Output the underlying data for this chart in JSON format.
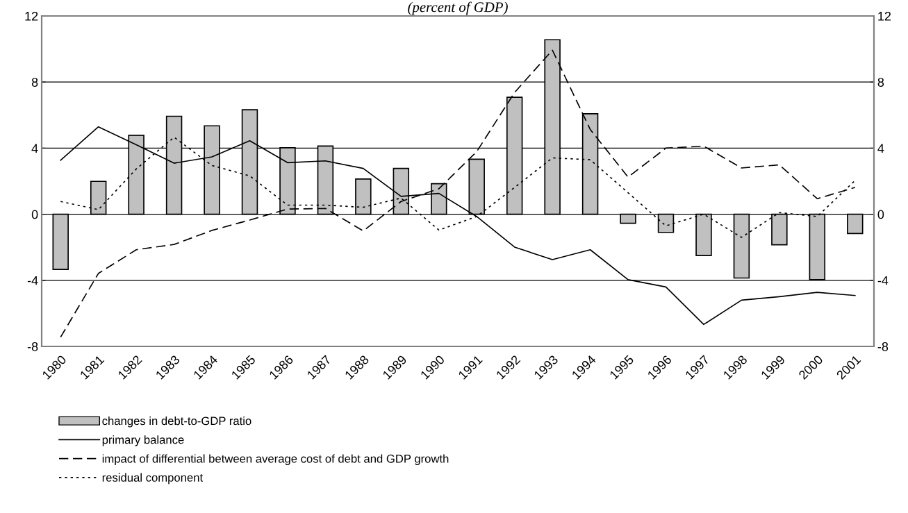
{
  "chart_data": {
    "type": "bar",
    "subtitle": "(percent of GDP)",
    "categories": [
      "1980",
      "1981",
      "1982",
      "1983",
      "1984",
      "1985",
      "1986",
      "1987",
      "1988",
      "1989",
      "1990",
      "1991",
      "1992",
      "1993",
      "1994",
      "1995",
      "1996",
      "1997",
      "1998",
      "1999",
      "2000",
      "2001"
    ],
    "series": [
      {
        "name": "changes in debt-to-GDP ratio",
        "color": "#c0c0c0",
        "values": [
          -3.34,
          1.99,
          4.78,
          5.93,
          5.35,
          6.32,
          4.02,
          4.13,
          2.13,
          2.77,
          1.85,
          3.33,
          7.08,
          10.56,
          6.08,
          -0.55,
          -1.1,
          -2.5,
          -3.86,
          -1.85,
          -3.96,
          -1.17
        ]
      },
      {
        "name": "primary balance",
        "type": "line",
        "color": "#000000",
        "line_style": "solid",
        "values": [
          3.27,
          5.29,
          4.21,
          3.09,
          3.47,
          4.45,
          3.12,
          3.23,
          2.77,
          1.08,
          1.26,
          -0.14,
          -1.99,
          -2.75,
          -2.15,
          -3.96,
          -4.4,
          -6.67,
          -5.2,
          -4.99,
          -4.73,
          -4.92
        ]
      },
      {
        "name": "impact of differential between average cost of debt and GDP growth",
        "type": "line",
        "color": "#000000",
        "line_style": "dashed",
        "values": [
          -7.44,
          -3.58,
          -2.15,
          -1.83,
          -0.98,
          -0.35,
          0.31,
          0.35,
          -1.01,
          0.77,
          1.54,
          3.79,
          7.37,
          9.93,
          5.13,
          2.25,
          4.0,
          4.12,
          2.8,
          2.99,
          0.94,
          1.62
        ]
      },
      {
        "name": "residual component",
        "type": "line",
        "color": "#000000",
        "line_style": "dotted",
        "values": [
          0.77,
          0.28,
          2.74,
          4.66,
          2.95,
          2.32,
          0.55,
          0.55,
          0.42,
          0.98,
          -0.96,
          -0.14,
          1.62,
          3.41,
          3.3,
          1.3,
          -0.7,
          0.0,
          -1.4,
          0.1,
          -0.14,
          2.04
        ]
      }
    ],
    "ylim": [
      -8,
      12
    ],
    "yticks": [
      -8,
      -4,
      0,
      4,
      8,
      12
    ],
    "y2lim": [
      -8,
      12
    ],
    "y2ticks": [
      -8,
      -4,
      0,
      4,
      8,
      12
    ],
    "grid": "y",
    "legend": "bottom left"
  }
}
